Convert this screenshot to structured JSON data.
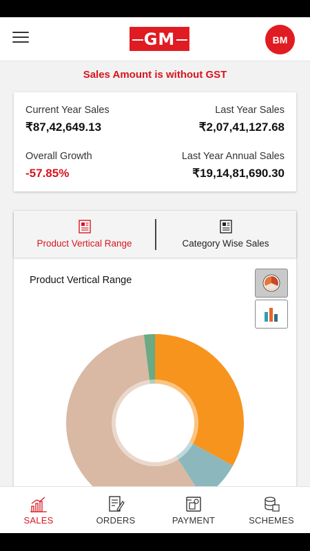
{
  "header": {
    "logo_text": "GM",
    "avatar_initials": "BM"
  },
  "notice": "Sales Amount is without GST",
  "sales_summary": {
    "current_year_label": "Current Year Sales",
    "current_year_value": "₹87,42,649.13",
    "last_year_label": "Last Year Sales",
    "last_year_value": "₹2,07,41,127.68",
    "growth_label": "Overall Growth",
    "growth_value": "-57.85%",
    "last_year_annual_label": "Last Year Annual Sales",
    "last_year_annual_value": "₹19,14,81,690.30"
  },
  "tabs": [
    {
      "label": "Product Vertical Range",
      "icon": "newspaper-icon",
      "active": true
    },
    {
      "label": "Category Wise Sales",
      "icon": "newspaper-icon",
      "active": false
    }
  ],
  "chart_title": "Product Vertical Range",
  "chart_toggles": [
    {
      "icon": "pie-chart-icon",
      "selected": true
    },
    {
      "icon": "bar-chart-icon",
      "selected": false
    }
  ],
  "chart_data": {
    "type": "pie",
    "variant": "donut",
    "slices": [
      {
        "value": 33,
        "color": "#f7941d"
      },
      {
        "value": 8,
        "color": "#8cb8bd"
      },
      {
        "value": 57,
        "color": "#d9b9a4"
      },
      {
        "value": 2,
        "color": "#6aaa85"
      }
    ]
  },
  "bottom_nav": [
    {
      "label": "SALES",
      "icon": "chart-icon",
      "active": true
    },
    {
      "label": "ORDERS",
      "icon": "orders-icon",
      "active": false
    },
    {
      "label": "PAYMENT",
      "icon": "payment-icon",
      "active": false
    },
    {
      "label": "SCHEMES",
      "icon": "schemes-icon",
      "active": false
    }
  ],
  "colors": {
    "accent": "#e11b22",
    "text_red": "#d8141d"
  }
}
